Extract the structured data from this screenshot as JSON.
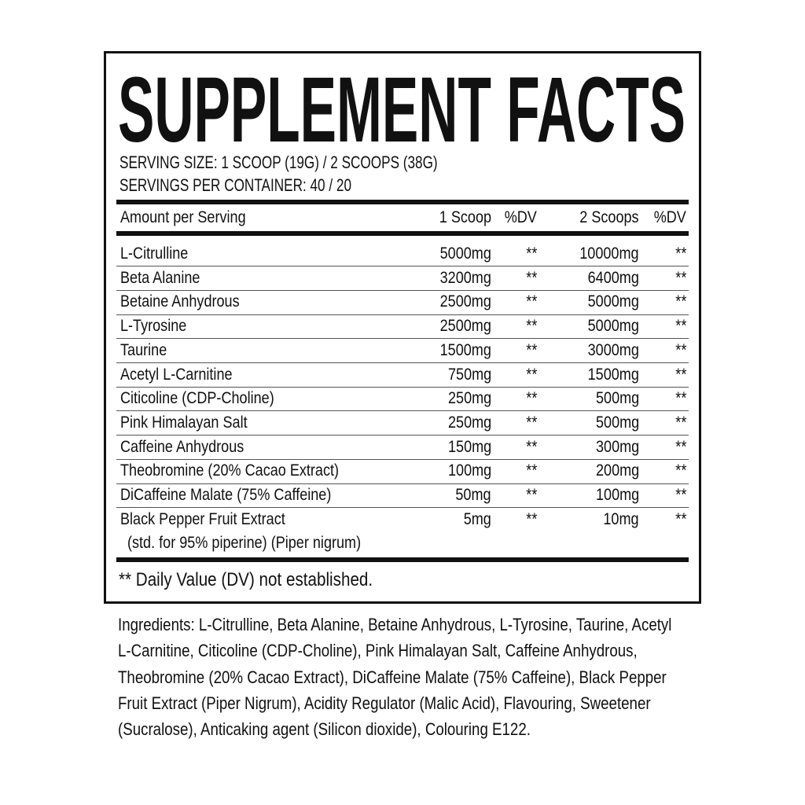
{
  "title": "SUPPLEMENT FACTS",
  "serving_size": "SERVING SIZE:  1 SCOOP (19G) / 2 SCOOPS (38G)",
  "servings_per_container": "SERVINGS PER CONTAINER:  40 / 20",
  "header": {
    "amount": "Amount per Serving",
    "one_scoop": "1 Scoop",
    "dv1": "%DV",
    "two_scoops": "2 Scoops",
    "dv2": "%DV"
  },
  "rows": [
    {
      "name": "L-Citrulline",
      "one": "5000mg",
      "dv1": "**",
      "two": "10000mg",
      "dv2": "**"
    },
    {
      "name": "Beta Alanine",
      "one": "3200mg",
      "dv1": "**",
      "two": "6400mg",
      "dv2": "**"
    },
    {
      "name": "Betaine Anhydrous",
      "one": "2500mg",
      "dv1": "**",
      "two": "5000mg",
      "dv2": "**"
    },
    {
      "name": "L-Tyrosine",
      "one": "2500mg",
      "dv1": "**",
      "two": "5000mg",
      "dv2": "**"
    },
    {
      "name": "Taurine",
      "one": "1500mg",
      "dv1": "**",
      "two": "3000mg",
      "dv2": "**"
    },
    {
      "name": "Acetyl L-Carnitine",
      "one": "750mg",
      "dv1": "**",
      "two": "1500mg",
      "dv2": "**"
    },
    {
      "name": "Citicoline (CDP-Choline)",
      "one": "250mg",
      "dv1": "**",
      "two": "500mg",
      "dv2": "**"
    },
    {
      "name": "Pink Himalayan Salt",
      "one": "250mg",
      "dv1": "**",
      "two": "500mg",
      "dv2": "**"
    },
    {
      "name": "Caffeine Anhydrous",
      "one": "150mg",
      "dv1": "**",
      "two": "300mg",
      "dv2": "**"
    },
    {
      "name": "Theobromine (20% Cacao Extract)",
      "one": "100mg",
      "dv1": "**",
      "two": "200mg",
      "dv2": "**"
    },
    {
      "name": "DiCaffeine Malate (75% Caffeine)",
      "one": "50mg",
      "dv1": "**",
      "two": "100mg",
      "dv2": "**"
    },
    {
      "name": "Black Pepper Fruit Extract",
      "sub": "(std. for 95% piperine) (Piper nigrum)",
      "one": "5mg",
      "dv1": "**",
      "two": "10mg",
      "dv2": "**"
    }
  ],
  "footnote": "** Daily Value (DV) not established.",
  "ingredients_lines": [
    "Ingredients: L-Citrulline, Beta Alanine, Betaine Anhydrous, L-Tyrosine, Taurine, Acetyl",
    "L-Carnitine, Citicoline (CDP-Choline), Pink Himalayan Salt, Caffeine Anhydrous,",
    "Theobromine (20% Cacao Extract), DiCaffeine Malate (75% Caffeine), Black Pepper",
    "Fruit Extract (Piper Nigrum), Acidity Regulator (Malic Acid), Flavouring, Sweetener",
    "(Sucralose), Anticaking agent (Silicon dioxide), Colouring E122."
  ]
}
